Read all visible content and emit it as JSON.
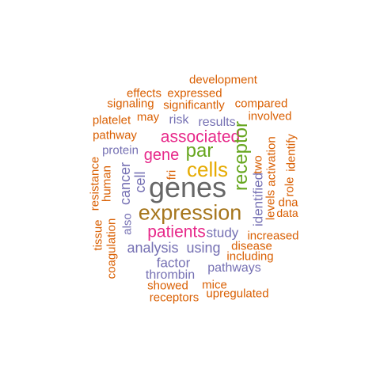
{
  "colors": {
    "orange": "#d95f02",
    "purple": "#7570b3",
    "magenta": "#e7298a",
    "green": "#66a61e",
    "gold": "#e6ab02",
    "brown": "#a6761d",
    "gray": "#666666"
  },
  "words": [
    {
      "text": "development",
      "color": "orange"
    },
    {
      "text": "effects",
      "color": "orange"
    },
    {
      "text": "expressed",
      "color": "orange"
    },
    {
      "text": "signaling",
      "color": "orange"
    },
    {
      "text": "significantly",
      "color": "orange"
    },
    {
      "text": "compared",
      "color": "orange"
    },
    {
      "text": "platelet",
      "color": "orange"
    },
    {
      "text": "may",
      "color": "orange"
    },
    {
      "text": "risk",
      "color": "purple"
    },
    {
      "text": "results",
      "color": "purple"
    },
    {
      "text": "involved",
      "color": "orange"
    },
    {
      "text": "pathway",
      "color": "orange"
    },
    {
      "text": "associated",
      "color": "magenta"
    },
    {
      "text": "par",
      "color": "green"
    },
    {
      "text": "protein",
      "color": "purple"
    },
    {
      "text": "gene",
      "color": "magenta"
    },
    {
      "text": "receptor",
      "color": "green"
    },
    {
      "text": "cells",
      "color": "gold"
    },
    {
      "text": "fri",
      "color": "orange"
    },
    {
      "text": "two",
      "color": "orange"
    },
    {
      "text": "activation",
      "color": "orange"
    },
    {
      "text": "identify",
      "color": "orange"
    },
    {
      "text": "resistance",
      "color": "orange"
    },
    {
      "text": "human",
      "color": "orange"
    },
    {
      "text": "cancer",
      "color": "purple"
    },
    {
      "text": "cell",
      "color": "purple"
    },
    {
      "text": "genes",
      "color": "gray"
    },
    {
      "text": "identified",
      "color": "purple"
    },
    {
      "text": "role",
      "color": "orange"
    },
    {
      "text": "levels",
      "color": "orange"
    },
    {
      "text": "dna",
      "color": "orange"
    },
    {
      "text": "data",
      "color": "orange"
    },
    {
      "text": "expression",
      "color": "brown"
    },
    {
      "text": "also",
      "color": "purple"
    },
    {
      "text": "tissue",
      "color": "orange"
    },
    {
      "text": "coagulation",
      "color": "orange"
    },
    {
      "text": "patients",
      "color": "magenta"
    },
    {
      "text": "study",
      "color": "purple"
    },
    {
      "text": "increased",
      "color": "orange"
    },
    {
      "text": "analysis",
      "color": "purple"
    },
    {
      "text": "using",
      "color": "purple"
    },
    {
      "text": "disease",
      "color": "orange"
    },
    {
      "text": "including",
      "color": "orange"
    },
    {
      "text": "factor",
      "color": "purple"
    },
    {
      "text": "pathways",
      "color": "purple"
    },
    {
      "text": "thrombin",
      "color": "purple"
    },
    {
      "text": "showed",
      "color": "orange"
    },
    {
      "text": "mice",
      "color": "orange"
    },
    {
      "text": "receptors",
      "color": "orange"
    },
    {
      "text": "upregulated",
      "color": "orange"
    }
  ]
}
